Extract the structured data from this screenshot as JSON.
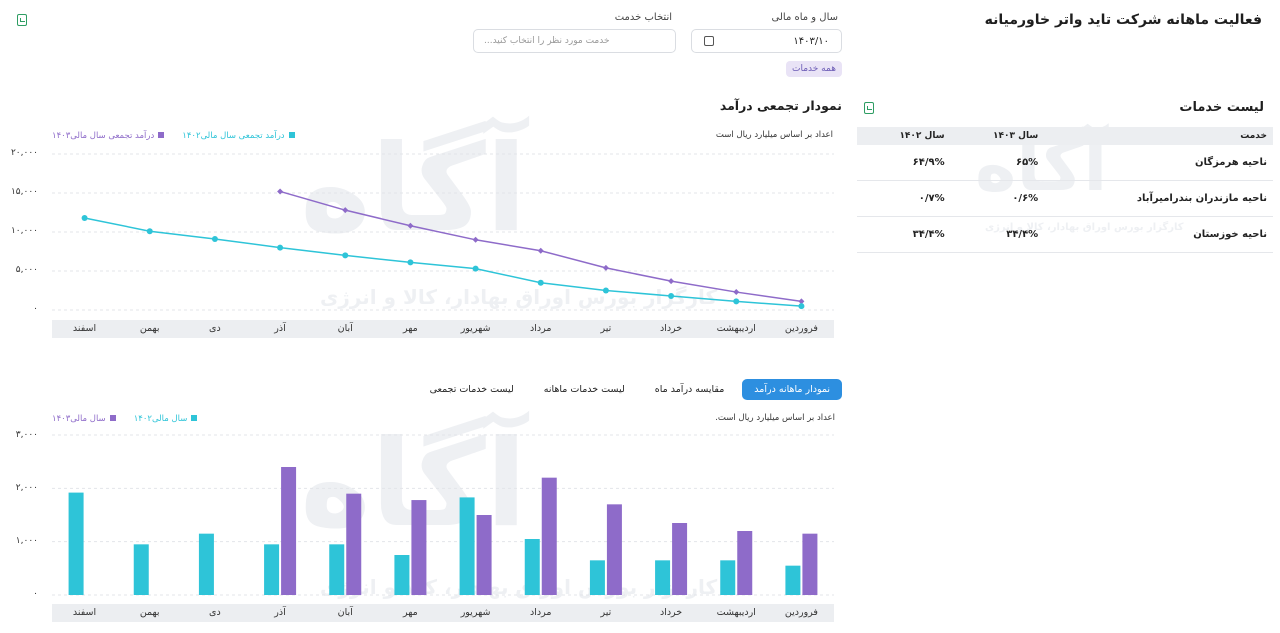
{
  "header": {
    "title": "فعالیت ماهانه شرکت تاید واتر خاورمیانه",
    "year_month_label": "سال و ماه مالی",
    "year_month_value": "۱۴۰۳/۱۰",
    "service_label": "انتخاب خدمت",
    "service_placeholder": "خدمت مورد نظر را انتخاب کنید...",
    "all_services_chip": "همه خدمات"
  },
  "cumulative": {
    "title": "نمودار تجمعی درآمد",
    "note": "اعداد بر اساس میلیارد ریال است",
    "yticks": [
      "۲۰,۰۰۰",
      "۱۵,۰۰۰",
      "۱۰,۰۰۰",
      "۵,۰۰۰",
      "۰"
    ]
  },
  "monthly": {
    "note": "اعداد بر اساس میلیارد ریال است.",
    "yticks": [
      "۳,۰۰۰",
      "۲,۰۰۰",
      "۱,۰۰۰",
      "۰"
    ]
  },
  "tabs": [
    {
      "label": "نمودار ماهانه درآمد",
      "active": true
    },
    {
      "label": "مقایسه درآمد ماه",
      "active": false
    },
    {
      "label": "لیست خدمات ماهانه",
      "active": false
    },
    {
      "label": "لیست خدمات تجمعی",
      "active": false
    }
  ],
  "services": {
    "title": "لیست خدمات",
    "headers": [
      "خدمت",
      "سال ۱۴۰۳",
      "سال ۱۴۰۲"
    ],
    "rows": [
      [
        "ناحیه هرمزگان",
        "۶۵%",
        "۶۴/۹%"
      ],
      [
        "ناحیه مازندران بندرامیرآباد",
        "۰/۶%",
        "۰/۷%"
      ],
      [
        "ناحیه خوزستان",
        "۳۴/۴%",
        "۳۴/۴%"
      ]
    ]
  },
  "watermark": {
    "brand": "آگاه",
    "slogan": "کارگزار بورس اوراق بهادار، کالا و انرژی"
  },
  "colors": {
    "series_1403": "#8e6bc9",
    "series_1402": "#2ec4d8",
    "accent": "#2d8fe0",
    "export_icon": "#2e9d63"
  },
  "chart_data": [
    {
      "type": "line",
      "title": "نمودار تجمعی درآمد",
      "categories": [
        "فروردین",
        "اردیبهشت",
        "خرداد",
        "تیر",
        "مرداد",
        "شهریور",
        "مهر",
        "آبان",
        "آذر",
        "دی",
        "بهمن",
        "اسفند"
      ],
      "series": [
        {
          "name": "درآمد تجمعی سال مالی۱۴۰۳",
          "color": "#8e6bc9",
          "values": [
            1100,
            2300,
            3700,
            5400,
            7600,
            9000,
            10800,
            12800,
            15200,
            null,
            null,
            null
          ]
        },
        {
          "name": "درآمد تجمعی سال مالی۱۴۰۲",
          "color": "#2ec4d8",
          "values": [
            500,
            1100,
            1800,
            2500,
            3500,
            5300,
            6100,
            7000,
            8000,
            9100,
            10100,
            11800
          ]
        }
      ],
      "ylim": [
        0,
        20000
      ],
      "grid": true,
      "legend": "top-left"
    },
    {
      "type": "bar",
      "title": "نمودار ماهانه درآمد",
      "categories": [
        "فروردین",
        "اردیبهشت",
        "خرداد",
        "تیر",
        "مرداد",
        "شهریور",
        "مهر",
        "آبان",
        "آذر",
        "دی",
        "بهمن",
        "اسفند"
      ],
      "series": [
        {
          "name": "سال مالی۱۴۰۳",
          "color": "#8e6bc9",
          "values": [
            1150,
            1200,
            1350,
            1700,
            2200,
            1500,
            1780,
            1900,
            2400,
            null,
            null,
            null
          ]
        },
        {
          "name": "سال مالی۱۴۰۲",
          "color": "#2ec4d8",
          "values": [
            550,
            650,
            650,
            650,
            1050,
            1830,
            750,
            950,
            950,
            1150,
            950,
            1920
          ]
        }
      ],
      "ylim": [
        0,
        3000
      ],
      "grid": true,
      "legend": "top-left"
    }
  ]
}
